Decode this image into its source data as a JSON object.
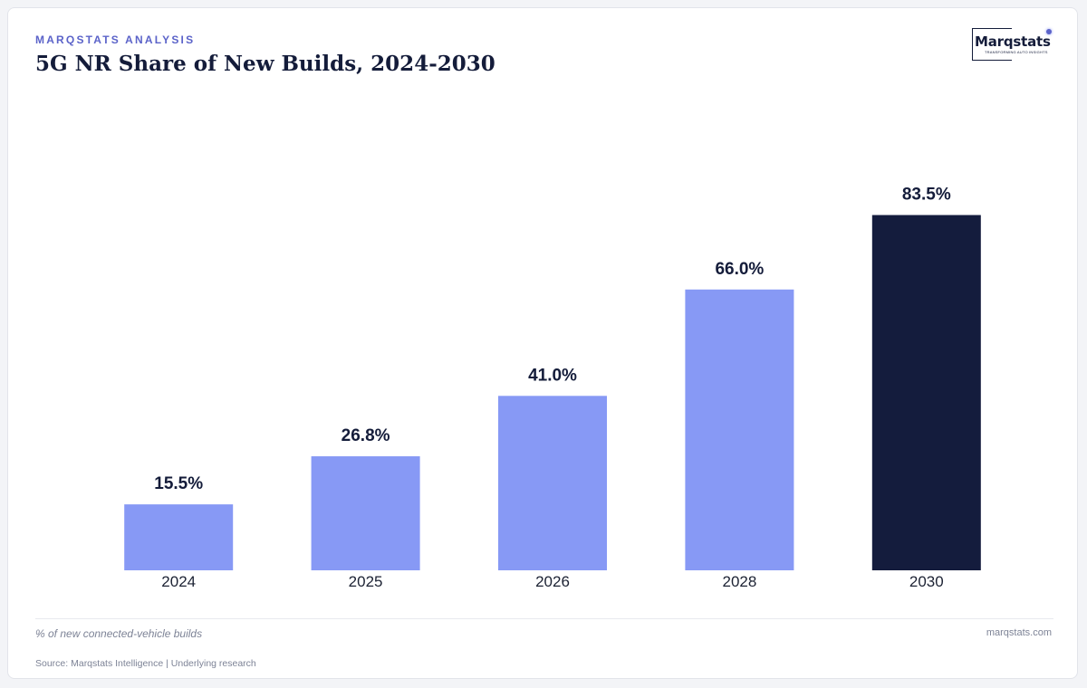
{
  "header": {
    "eyebrow": "MARQSTATS ANALYSIS",
    "title": "5G NR Share of New Builds, 2024-2030"
  },
  "logo": {
    "wordmark": "Marqstats",
    "tagline": "TRANSFORMING AUTO INSIGHTS"
  },
  "chart_data": {
    "type": "bar",
    "title": "5G NR Share of New Builds, 2024-2030",
    "categories": [
      "2024",
      "2025",
      "2026",
      "2028",
      "2030"
    ],
    "values": [
      15.5,
      26.8,
      41.0,
      66.0,
      83.5
    ],
    "value_labels": [
      "15.5%",
      "26.8%",
      "41.0%",
      "66.0%",
      "83.5%"
    ],
    "unit": "%",
    "ylim": [
      0,
      100
    ],
    "grid": false,
    "legend": "none",
    "highlight_index": 4,
    "colors": {
      "bar": "#8799f5",
      "highlight": "#141c3d",
      "label": "#141c3a",
      "tick": "#1c2233"
    }
  },
  "footer": {
    "note": "% of new connected-vehicle builds",
    "site": "marqstats.com",
    "source": "Source: Marqstats Intelligence | Underlying research"
  }
}
